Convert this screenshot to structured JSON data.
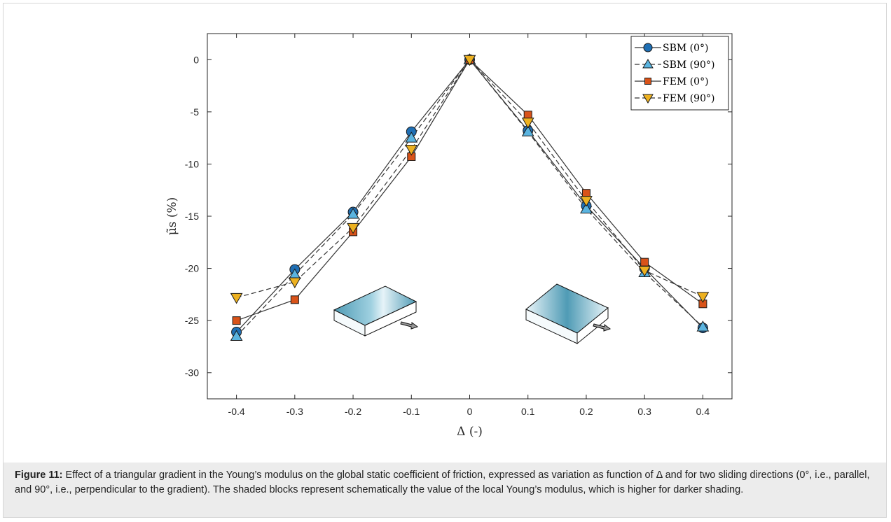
{
  "figure": {
    "caption_label": "Figure 11:",
    "caption_text": " Effect of a triangular gradient in the Young’s modulus on the global static coefficient of friction, expressed as variation as function of Δ and for two sliding directions (0°, i.e., parallel, and 90°, i.e., perpendicular to the gradient). The shaded blocks represent schematically the value of the local Young’s modulus, which is higher for darker shading."
  },
  "chart_data": {
    "type": "line",
    "xlabel": "Δ (-)",
    "ylabel": "μ̃s (%)",
    "xlim": [
      -0.45,
      0.45
    ],
    "ylim": [
      -32.5,
      2.5
    ],
    "xticks": [
      -0.4,
      -0.3,
      -0.2,
      -0.1,
      0,
      0.1,
      0.2,
      0.3,
      0.4
    ],
    "xtick_labels": [
      "-0.4",
      "-0.3",
      "-0.2",
      "-0.1",
      "0",
      "0.1",
      "0.2",
      "0.3",
      "0.4"
    ],
    "yticks": [
      0,
      -5,
      -10,
      -15,
      -20,
      -25,
      -30
    ],
    "ytick_labels": [
      "0",
      "-5",
      "-10",
      "-15",
      "-20",
      "-25",
      "-30"
    ],
    "grid": false,
    "legend_position": "top-right",
    "x": [
      -0.4,
      -0.3,
      -0.2,
      -0.1,
      0,
      0.1,
      0.2,
      0.3,
      0.4
    ],
    "series": [
      {
        "name": "SBM (0°)",
        "line": "solid",
        "marker": "circle",
        "color": "#1f6fb4",
        "values": [
          -26.1,
          -20.1,
          -14.6,
          -6.9,
          0,
          -6.8,
          -14.0,
          -20.0,
          -25.7
        ]
      },
      {
        "name": "SBM (90°)",
        "line": "dashed",
        "marker": "triangle-up",
        "color": "#5ab4e0",
        "values": [
          -26.5,
          -20.6,
          -14.8,
          -7.5,
          0,
          -6.9,
          -14.3,
          -20.4,
          -25.6
        ]
      },
      {
        "name": "FEM (0°)",
        "line": "solid",
        "marker": "square",
        "color": "#d95319",
        "values": [
          -25.0,
          -23.0,
          -16.5,
          -9.3,
          0,
          -5.3,
          -12.8,
          -19.4,
          -23.4
        ]
      },
      {
        "name": "FEM (90°)",
        "line": "dashed",
        "marker": "triangle-down",
        "color": "#edb120",
        "values": [
          -22.8,
          -21.3,
          -16.1,
          -8.6,
          0,
          -6.0,
          -13.5,
          -20.2,
          -22.7
        ]
      }
    ]
  }
}
